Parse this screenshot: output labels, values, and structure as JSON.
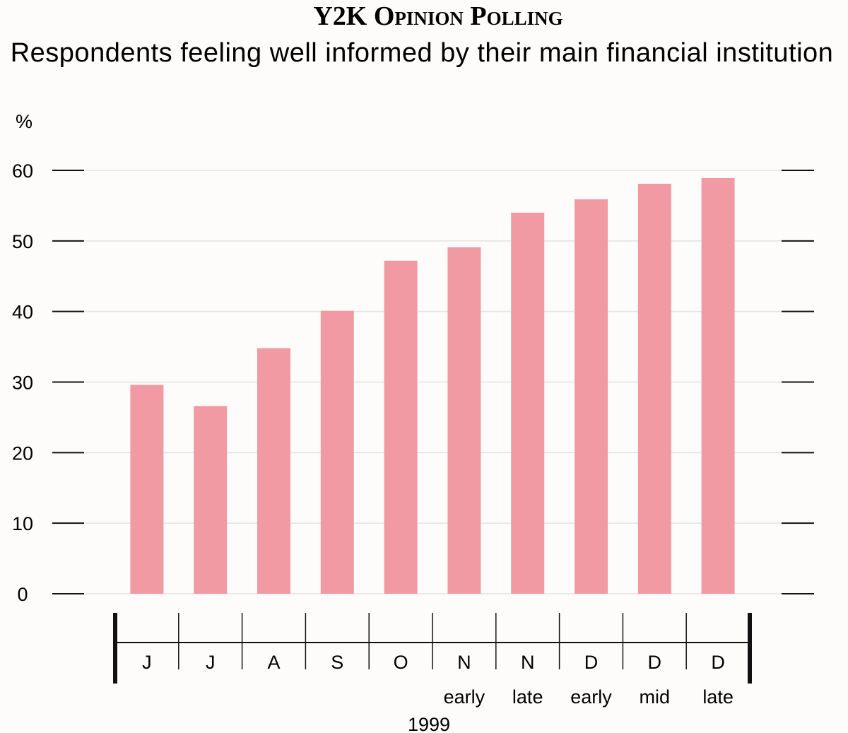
{
  "chart_data": {
    "type": "bar",
    "title": "Y2K Opinion Polling",
    "subtitle": "Respondents feeling well informed by their main financial institution",
    "ylabel": "%",
    "ylim": [
      0,
      60
    ],
    "yticks": [
      0,
      10,
      20,
      30,
      40,
      50,
      60
    ],
    "xlabel": "1999",
    "categories": [
      "J",
      "J",
      "A",
      "S",
      "O",
      "N",
      "N",
      "D",
      "D",
      "D"
    ],
    "sub_labels": [
      "",
      "",
      "",
      "",
      "",
      "early",
      "late",
      "early",
      "mid",
      "late"
    ],
    "values": [
      29.6,
      26.6,
      34.8,
      40.1,
      47.2,
      49.1,
      54.0,
      55.9,
      58.1,
      58.9
    ],
    "bar_color": "#f29aa3",
    "grid": true
  }
}
